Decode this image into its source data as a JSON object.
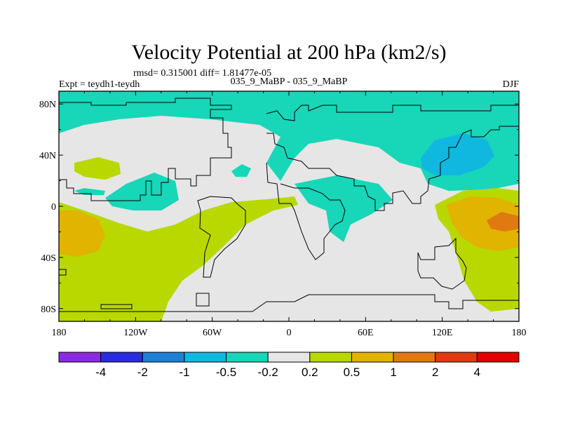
{
  "figure": {
    "title": "Velocity Potential at 200 hPa (km2/s)",
    "stats": "rmsd= 0.315001 diff= 1.81477e-05",
    "left_label": "Expt = teydh1-teydh",
    "center_label": "035_9_MaBP - 035_9_MaBP",
    "right_label": "DJF"
  },
  "chart_data": {
    "type": "heatmap",
    "title": "Velocity Potential at 200 hPa (km2/s)",
    "x": {
      "range": [
        -180,
        180
      ],
      "ticks": [
        -180,
        -120,
        -60,
        0,
        60,
        120,
        180
      ],
      "tick_labels": [
        "180",
        "120W",
        "60W",
        "0",
        "60E",
        "120E",
        "180"
      ]
    },
    "y": {
      "range": [
        -90,
        90
      ],
      "ticks": [
        80,
        40,
        0,
        -40,
        -80
      ],
      "tick_labels": [
        "80N",
        "40N",
        "0",
        "40S",
        "80S"
      ]
    },
    "colorbar": {
      "levels": [
        "-4",
        "-2",
        "-1",
        "-0.5",
        "-0.2",
        "0.2",
        "0.5",
        "1",
        "2",
        "4"
      ],
      "colors": [
        "#8a2be2",
        "#2b2be0",
        "#1e7fd6",
        "#10b8e0",
        "#18d6b8",
        "#e6e6e6",
        "#b8d800",
        "#e0b400",
        "#e07a10",
        "#e03a10",
        "#e00000"
      ]
    },
    "regions": [
      {
        "name": "arctic-band",
        "range": "-0.5 to -0.2",
        "color": "#18d6b8"
      },
      {
        "name": "n-pacific-low",
        "range": "-1 to -0.5",
        "color": "#10b8e0"
      },
      {
        "name": "eastern-hemisphere",
        "range": "-0.5 to -0.2",
        "color": "#18d6b8"
      },
      {
        "name": "s-pacific",
        "range": "0.2 to 0.5",
        "color": "#b8d800"
      },
      {
        "name": "s-pacific-core",
        "range": "0.5 to 1",
        "color": "#e0b400"
      },
      {
        "name": "w-pacific-high",
        "range": "1 to 2",
        "color": "#e07a10"
      }
    ]
  }
}
